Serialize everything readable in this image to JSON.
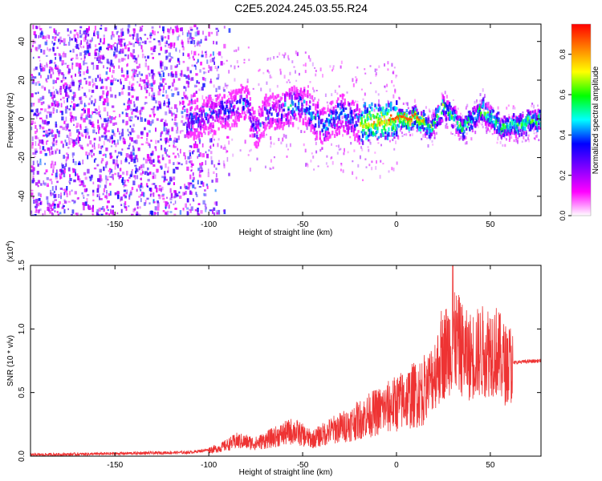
{
  "figure": {
    "title": "C2E5.2024.245.03.55.R24"
  },
  "chart_data": [
    {
      "type": "heatmap",
      "title": "C2E5.2024.245.03.55.R24",
      "xlabel": "Height of straight line (km)",
      "ylabel": "Frequency (Hz)",
      "xlim": [
        -195,
        77
      ],
      "ylim": [
        -50,
        49
      ],
      "x_ticks": [
        -150,
        -100,
        -50,
        0,
        50
      ],
      "x_tick_labels": [
        "-150",
        "-100",
        "-50",
        "0",
        "50"
      ],
      "y_ticks": [
        -40,
        -20,
        0,
        20,
        40
      ],
      "y_tick_labels": [
        "-40",
        "-20",
        "0",
        "20",
        "40"
      ],
      "colorbar": {
        "label": "Normalized spectral amplitude",
        "range": [
          0,
          0.95
        ],
        "ticks": [
          0,
          0.2,
          0.4,
          0.6,
          0.8
        ],
        "tick_labels": [
          "0.0",
          "0.2",
          "0.4",
          "0.6",
          "0.8"
        ],
        "colormap": [
          "#ffffff",
          "#ff00ff",
          "#8000ff",
          "#0000ff",
          "#00ffff",
          "#00ff00",
          "#ffff00",
          "#ff8000",
          "#ff0000"
        ]
      },
      "ridge_center": [
        {
          "x": -110,
          "y": 0
        },
        {
          "x": -90,
          "y": 6
        },
        {
          "x": -80,
          "y": 10
        },
        {
          "x": -75,
          "y": -6
        },
        {
          "x": -70,
          "y": 4
        },
        {
          "x": -50,
          "y": 8
        },
        {
          "x": -40,
          "y": -3
        },
        {
          "x": -30,
          "y": 4
        },
        {
          "x": -20,
          "y": -2
        },
        {
          "x": 0,
          "y": 1
        },
        {
          "x": 10,
          "y": 1
        },
        {
          "x": 18,
          "y": -4
        },
        {
          "x": 25,
          "y": 8
        },
        {
          "x": 35,
          "y": -4
        },
        {
          "x": 45,
          "y": 6
        },
        {
          "x": 55,
          "y": -3
        },
        {
          "x": 77,
          "y": 0
        }
      ],
      "noise_region_x": [
        -195,
        -100
      ]
    },
    {
      "type": "line",
      "xlabel": "Height of straight line (km)",
      "ylabel": "SNR (10 * v/v)",
      "multiplier_label": "(x10",
      "multiplier_exponent": "4",
      "xlim": [
        -195,
        77
      ],
      "ylim": [
        0,
        1.5
      ],
      "x_ticks": [
        -150,
        -100,
        -50,
        0,
        50
      ],
      "x_tick_labels": [
        "-150",
        "-100",
        "-50",
        "0",
        "50"
      ],
      "y_ticks": [
        0,
        0.5,
        1.0,
        1.5
      ],
      "y_tick_labels": [
        "0.0",
        "0.5",
        "1.0",
        "1.5"
      ],
      "color": "#ee3333",
      "envelope": [
        {
          "x": -195,
          "y": 0.01
        },
        {
          "x": -150,
          "y": 0.02
        },
        {
          "x": -110,
          "y": 0.03
        },
        {
          "x": -95,
          "y": 0.06
        },
        {
          "x": -85,
          "y": 0.12
        },
        {
          "x": -75,
          "y": 0.1
        },
        {
          "x": -65,
          "y": 0.15
        },
        {
          "x": -55,
          "y": 0.2
        },
        {
          "x": -45,
          "y": 0.13
        },
        {
          "x": -35,
          "y": 0.2
        },
        {
          "x": -25,
          "y": 0.25
        },
        {
          "x": -15,
          "y": 0.32
        },
        {
          "x": -5,
          "y": 0.38
        },
        {
          "x": 5,
          "y": 0.45
        },
        {
          "x": 15,
          "y": 0.52
        },
        {
          "x": 22,
          "y": 0.7
        },
        {
          "x": 27,
          "y": 0.85
        },
        {
          "x": 32,
          "y": 0.9
        },
        {
          "x": 38,
          "y": 0.78
        },
        {
          "x": 45,
          "y": 0.82
        },
        {
          "x": 52,
          "y": 0.85
        },
        {
          "x": 58,
          "y": 0.72
        },
        {
          "x": 65,
          "y": 0.74
        },
        {
          "x": 77,
          "y": 0.75
        }
      ],
      "peak": {
        "x": 30,
        "y": 1.5
      }
    }
  ]
}
